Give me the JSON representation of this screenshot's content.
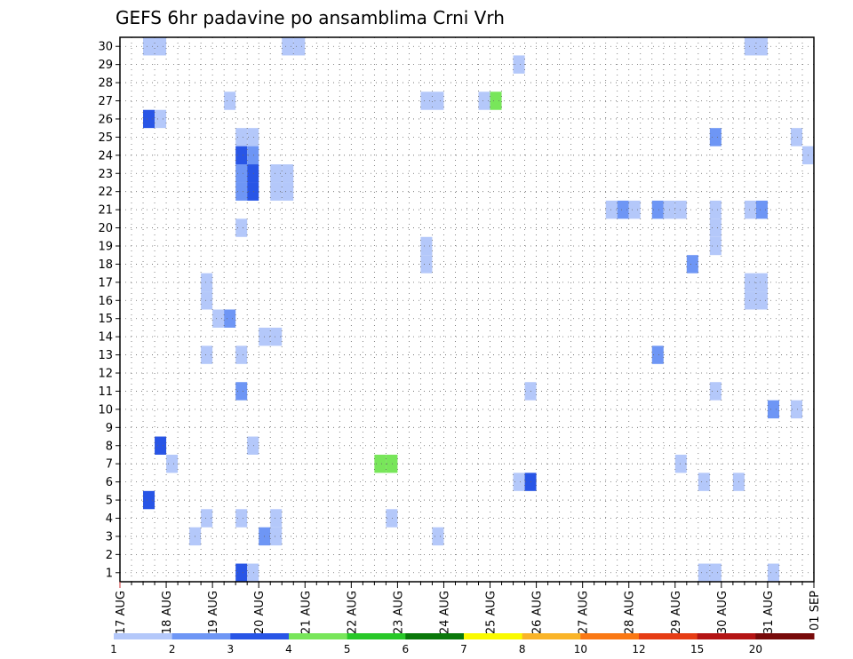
{
  "chart_data": {
    "type": "heatmap",
    "title": "GEFS 6hr padavine po ansamblima Crni Vrh",
    "x_tick_labels": [
      "17 AUG",
      "18 AUG",
      "19 AUG",
      "20 AUG",
      "21 AUG",
      "22 AUG",
      "23 AUG",
      "24 AUG",
      "25 AUG",
      "26 AUG",
      "27 AUG",
      "28 AUG",
      "29 AUG",
      "30 AUG",
      "31 AUG",
      "01 SEP"
    ],
    "y_tick_labels": [
      "1",
      "2",
      "3",
      "4",
      "5",
      "6",
      "7",
      "8",
      "9",
      "10",
      "11",
      "12",
      "13",
      "14",
      "15",
      "16",
      "17",
      "18",
      "19",
      "20",
      "21",
      "22",
      "23",
      "24",
      "25",
      "26",
      "27",
      "28",
      "29",
      "30"
    ],
    "xlim_days": [
      0,
      15
    ],
    "ylim": [
      0.5,
      30.5
    ],
    "time_step_days": 0.25,
    "grid": "dotted",
    "colorbar": {
      "labels": [
        "1",
        "2",
        "3",
        "4",
        "5",
        "6",
        "7",
        "8",
        "10",
        "12",
        "15",
        "20"
      ],
      "colors": [
        "#b4c8fa",
        "#6e96f5",
        "#2855e6",
        "#78e65a",
        "#28c828",
        "#0a780a",
        "#fafa00",
        "#fab428",
        "#fa7814",
        "#e63c14",
        "#b41414",
        "#780a0a"
      ]
    },
    "cells": [
      {
        "day": 0.5,
        "member": 30,
        "level": 0
      },
      {
        "day": 0.75,
        "member": 30,
        "level": 0
      },
      {
        "day": 3.5,
        "member": 30,
        "level": 0
      },
      {
        "day": 3.75,
        "member": 30,
        "level": 0
      },
      {
        "day": 13.5,
        "member": 30,
        "level": 0
      },
      {
        "day": 13.75,
        "member": 30,
        "level": 0
      },
      {
        "day": 8.5,
        "member": 29,
        "level": 0
      },
      {
        "day": 2.25,
        "member": 27,
        "level": 0
      },
      {
        "day": 6.5,
        "member": 27,
        "level": 0
      },
      {
        "day": 6.75,
        "member": 27,
        "level": 0
      },
      {
        "day": 7.75,
        "member": 27,
        "level": 0
      },
      {
        "day": 8.0,
        "member": 27,
        "level": 3
      },
      {
        "day": 0.5,
        "member": 26,
        "level": 2
      },
      {
        "day": 0.75,
        "member": 26,
        "level": 0
      },
      {
        "day": 2.5,
        "member": 25,
        "level": 0
      },
      {
        "day": 2.75,
        "member": 25,
        "level": 0
      },
      {
        "day": 12.75,
        "member": 25,
        "level": 1
      },
      {
        "day": 14.5,
        "member": 25,
        "level": 0
      },
      {
        "day": 2.5,
        "member": 24,
        "level": 2
      },
      {
        "day": 2.75,
        "member": 24,
        "level": 1
      },
      {
        "day": 14.75,
        "member": 24,
        "level": 0
      },
      {
        "day": 2.5,
        "member": 23,
        "level": 1
      },
      {
        "day": 2.75,
        "member": 23,
        "level": 2
      },
      {
        "day": 3.25,
        "member": 23,
        "level": 0
      },
      {
        "day": 3.5,
        "member": 23,
        "level": 0
      },
      {
        "day": 2.5,
        "member": 22,
        "level": 1
      },
      {
        "day": 2.75,
        "member": 22,
        "level": 2
      },
      {
        "day": 3.25,
        "member": 22,
        "level": 0
      },
      {
        "day": 3.5,
        "member": 22,
        "level": 0
      },
      {
        "day": 10.5,
        "member": 21,
        "level": 0
      },
      {
        "day": 10.75,
        "member": 21,
        "level": 1
      },
      {
        "day": 11.0,
        "member": 21,
        "level": 0
      },
      {
        "day": 11.5,
        "member": 21,
        "level": 1
      },
      {
        "day": 11.75,
        "member": 21,
        "level": 0
      },
      {
        "day": 12.0,
        "member": 21,
        "level": 0
      },
      {
        "day": 12.75,
        "member": 21,
        "level": 0
      },
      {
        "day": 13.5,
        "member": 21,
        "level": 0
      },
      {
        "day": 13.75,
        "member": 21,
        "level": 1
      },
      {
        "day": 2.5,
        "member": 20,
        "level": 0
      },
      {
        "day": 12.75,
        "member": 20,
        "level": 0
      },
      {
        "day": 12.75,
        "member": 19,
        "level": 0
      },
      {
        "day": 6.5,
        "member": 19,
        "level": 0
      },
      {
        "day": 6.5,
        "member": 18,
        "level": 0
      },
      {
        "day": 12.25,
        "member": 18,
        "level": 1
      },
      {
        "day": 1.75,
        "member": 17,
        "level": 0
      },
      {
        "day": 13.5,
        "member": 17,
        "level": 0
      },
      {
        "day": 13.75,
        "member": 17,
        "level": 0
      },
      {
        "day": 1.75,
        "member": 16,
        "level": 0
      },
      {
        "day": 13.5,
        "member": 16,
        "level": 0
      },
      {
        "day": 13.75,
        "member": 16,
        "level": 0
      },
      {
        "day": 2.0,
        "member": 15,
        "level": 0
      },
      {
        "day": 2.25,
        "member": 15,
        "level": 1
      },
      {
        "day": 3.0,
        "member": 14,
        "level": 0
      },
      {
        "day": 3.25,
        "member": 14,
        "level": 0
      },
      {
        "day": 1.75,
        "member": 13,
        "level": 0
      },
      {
        "day": 2.5,
        "member": 13,
        "level": 0
      },
      {
        "day": 11.5,
        "member": 13,
        "level": 1
      },
      {
        "day": 2.5,
        "member": 11,
        "level": 1
      },
      {
        "day": 8.75,
        "member": 11,
        "level": 0
      },
      {
        "day": 12.75,
        "member": 11,
        "level": 0
      },
      {
        "day": 14.0,
        "member": 10,
        "level": 1
      },
      {
        "day": 14.5,
        "member": 10,
        "level": 0
      },
      {
        "day": 0.75,
        "member": 8,
        "level": 2
      },
      {
        "day": 2.75,
        "member": 8,
        "level": 0
      },
      {
        "day": 1.0,
        "member": 7,
        "level": 0
      },
      {
        "day": 5.5,
        "member": 7,
        "level": 3
      },
      {
        "day": 5.75,
        "member": 7,
        "level": 3
      },
      {
        "day": 12.0,
        "member": 7,
        "level": 0
      },
      {
        "day": 8.5,
        "member": 6,
        "level": 0
      },
      {
        "day": 8.75,
        "member": 6,
        "level": 2
      },
      {
        "day": 12.5,
        "member": 6,
        "level": 0
      },
      {
        "day": 13.25,
        "member": 6,
        "level": 0
      },
      {
        "day": 0.5,
        "member": 5,
        "level": 2
      },
      {
        "day": 1.75,
        "member": 4,
        "level": 0
      },
      {
        "day": 2.5,
        "member": 4,
        "level": 0
      },
      {
        "day": 3.25,
        "member": 4,
        "level": 0
      },
      {
        "day": 5.75,
        "member": 4,
        "level": 0
      },
      {
        "day": 1.5,
        "member": 3,
        "level": 0
      },
      {
        "day": 3.0,
        "member": 3,
        "level": 1
      },
      {
        "day": 3.25,
        "member": 3,
        "level": 0
      },
      {
        "day": 6.75,
        "member": 3,
        "level": 0
      },
      {
        "day": 2.5,
        "member": 1,
        "level": 2
      },
      {
        "day": 2.75,
        "member": 1,
        "level": 0
      },
      {
        "day": 12.5,
        "member": 1,
        "level": 0
      },
      {
        "day": 12.75,
        "member": 1,
        "level": 0
      },
      {
        "day": 14.0,
        "member": 1,
        "level": 0
      }
    ]
  }
}
